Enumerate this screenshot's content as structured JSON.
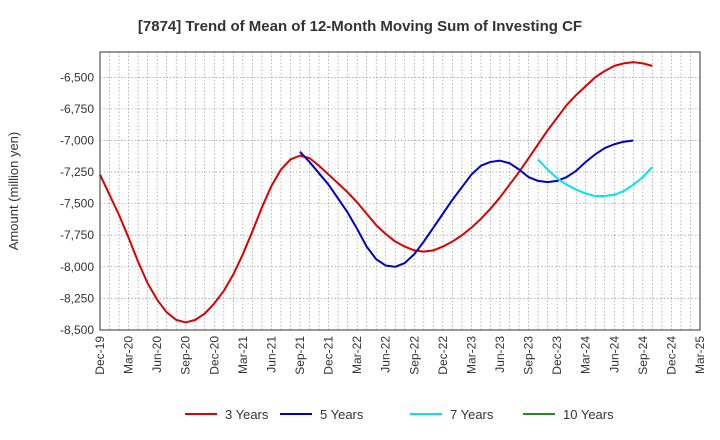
{
  "chart_data": {
    "type": "line",
    "title": "[7874]  Trend of Mean of 12-Month Moving Sum of Investing CF",
    "xlabel": "",
    "ylabel": "Amount (million yen)",
    "ylim": [
      -8500,
      -6300
    ],
    "yticks": [
      -6500,
      -6750,
      -7000,
      -7250,
      -7500,
      -7750,
      -8000,
      -8250,
      -8500
    ],
    "ytick_labels": [
      "-6,500",
      "-6,750",
      "-7,000",
      "-7,250",
      "-7,500",
      "-7,750",
      "-8,000",
      "-8,250",
      "-8,500"
    ],
    "x_start": "Dec-19",
    "x_months_total": 63,
    "xtick_labels": [
      "Dec-19",
      "Mar-20",
      "Jun-20",
      "Sep-20",
      "Dec-20",
      "Mar-21",
      "Jun-21",
      "Sep-21",
      "Dec-21",
      "Mar-22",
      "Jun-22",
      "Sep-22",
      "Dec-22",
      "Mar-23",
      "Jun-23",
      "Sep-23",
      "Dec-23",
      "Mar-24",
      "Jun-24",
      "Sep-24",
      "Dec-24",
      "Mar-25"
    ],
    "legend_position": "bottom",
    "grid": true,
    "series": [
      {
        "name": "3 Years",
        "color": "#dd0000",
        "start_month": 0,
        "values": [
          -7270,
          -7430,
          -7590,
          -7770,
          -7960,
          -8130,
          -8260,
          -8360,
          -8420,
          -8440,
          -8420,
          -8370,
          -8290,
          -8190,
          -8060,
          -7900,
          -7720,
          -7530,
          -7360,
          -7230,
          -7150,
          -7120,
          -7140,
          -7200,
          -7270,
          -7340,
          -7410,
          -7490,
          -7580,
          -7670,
          -7740,
          -7800,
          -7840,
          -7870,
          -7880,
          -7870,
          -7840,
          -7800,
          -7750,
          -7690,
          -7620,
          -7540,
          -7450,
          -7350,
          -7250,
          -7140,
          -7030,
          -6920,
          -6820,
          -6720,
          -6640,
          -6570,
          -6500,
          -6450,
          -6410,
          -6390,
          -6380,
          -6390,
          -6410
        ]
      },
      {
        "name": "5 Years",
        "color": "#0000cc",
        "start_month": 21,
        "values": [
          -7090,
          -7170,
          -7260,
          -7350,
          -7460,
          -7570,
          -7700,
          -7840,
          -7940,
          -7990,
          -8000,
          -7970,
          -7900,
          -7800,
          -7690,
          -7580,
          -7470,
          -7370,
          -7270,
          -7200,
          -7170,
          -7160,
          -7180,
          -7230,
          -7290,
          -7320,
          -7330,
          -7320,
          -7290,
          -7240,
          -7170,
          -7110,
          -7060,
          -7030,
          -7010,
          -7000
        ]
      },
      {
        "name": "7 Years",
        "color": "#00e5ee",
        "start_month": 46,
        "values": [
          -7150,
          -7230,
          -7300,
          -7350,
          -7390,
          -7420,
          -7440,
          -7440,
          -7430,
          -7400,
          -7350,
          -7290,
          -7210
        ]
      },
      {
        "name": "10 Years",
        "color": "#228b22",
        "start_month": 0,
        "values": []
      }
    ]
  }
}
